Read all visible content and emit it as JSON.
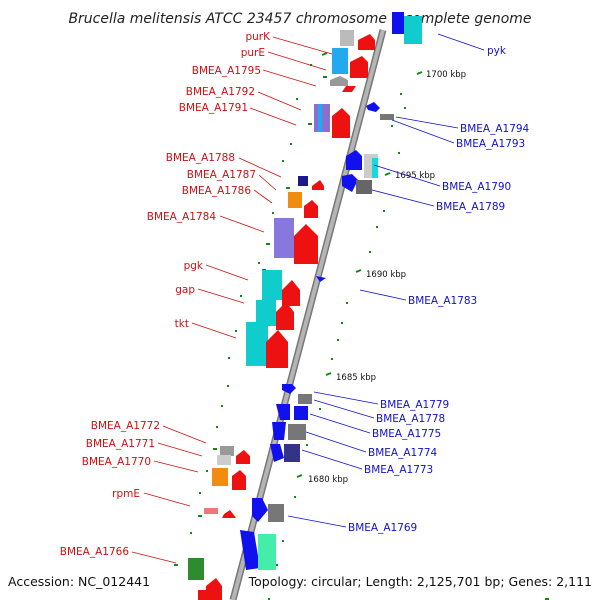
{
  "title": "Brucella melitensis ATCC 23457 chromosome I, complete genome",
  "footer": {
    "accession": "Accession: NC_012441",
    "summary": "Topology: circular; Length: 2,125,701 bp; Genes: 2,111"
  },
  "colors": {
    "backbone": "#999999",
    "forward_label": "#cc1111",
    "reverse_label": "#1111cc",
    "tick": "#118811"
  },
  "scale_ticks": [
    "1700 kbp",
    "1695 kbp",
    "1690 kbp",
    "1685 kbp",
    "1680 kbp"
  ],
  "left_labels": [
    "purK",
    "purE",
    "BMEA_A1795",
    "BMEA_A1792",
    "BMEA_A1791",
    "BMEA_A1788",
    "BMEA_A1787",
    "BMEA_A1786",
    "BMEA_A1784",
    "pgk",
    "gap",
    "tkt",
    "BMEA_A1772",
    "BMEA_A1771",
    "BMEA_A1770",
    "rpmE",
    "BMEA_A1766"
  ],
  "right_labels": [
    "pyk",
    "BMEA_A1794",
    "BMEA_A1793",
    "BMEA_A1790",
    "BMEA_A1789",
    "BMEA_A1783",
    "BMEA_A1779",
    "BMEA_A1778",
    "BMEA_A1775",
    "BMEA_A1774",
    "BMEA_A1773",
    "BMEA_A1769"
  ]
}
